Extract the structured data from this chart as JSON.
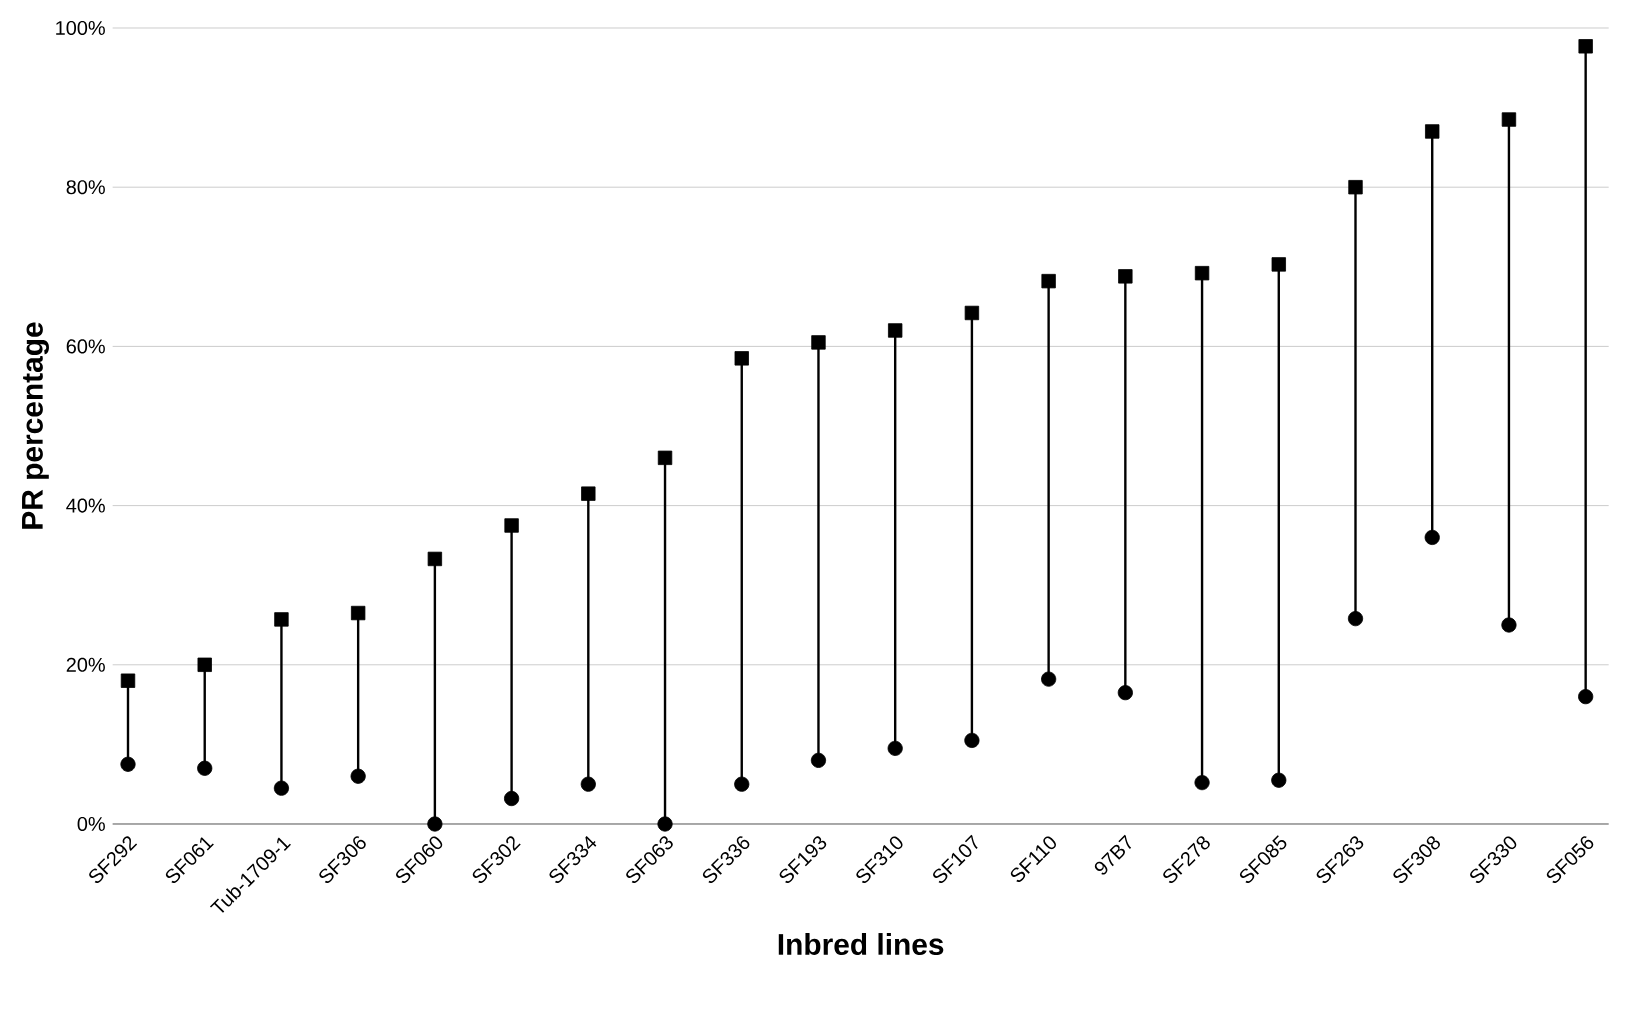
{
  "chart_data": {
    "type": "scatter",
    "xlabel": "Inbred lines",
    "ylabel": "PR percentage",
    "categories": [
      "SF292",
      "SF061",
      "Tub-1709-1",
      "SF306",
      "SF060",
      "SF302",
      "SF334",
      "SF063",
      "SF336",
      "SF193",
      "SF310",
      "SF107",
      "SF110",
      "97B7",
      "SF278",
      "SF085",
      "SF263",
      "SF308",
      "SF330",
      "SF056"
    ],
    "series": [
      {
        "color": "#000000",
        "marker": "square",
        "values": [
          18,
          20,
          25.7,
          26.5,
          33.3,
          37.5,
          41.5,
          46,
          58.5,
          60.5,
          62,
          64.2,
          68.2,
          68.8,
          69.2,
          70.3,
          80,
          87,
          88.5,
          97.7
        ]
      },
      {
        "color": "#000000",
        "marker": "circle",
        "values": [
          7.5,
          7,
          4.5,
          6,
          0,
          3.2,
          5,
          0,
          5,
          8,
          9.5,
          10.5,
          18.2,
          16.5,
          5.2,
          5.5,
          25.8,
          36,
          25,
          16
        ]
      }
    ],
    "ylim": [
      0,
      100
    ],
    "yticks": [
      {
        "value": 0,
        "label": "0%"
      },
      {
        "value": 20,
        "label": "20%"
      },
      {
        "value": 40,
        "label": "40%"
      },
      {
        "value": 60,
        "label": "60%"
      },
      {
        "value": 80,
        "label": "80%"
      },
      {
        "value": 100,
        "label": "100%"
      }
    ],
    "grid": "y"
  }
}
